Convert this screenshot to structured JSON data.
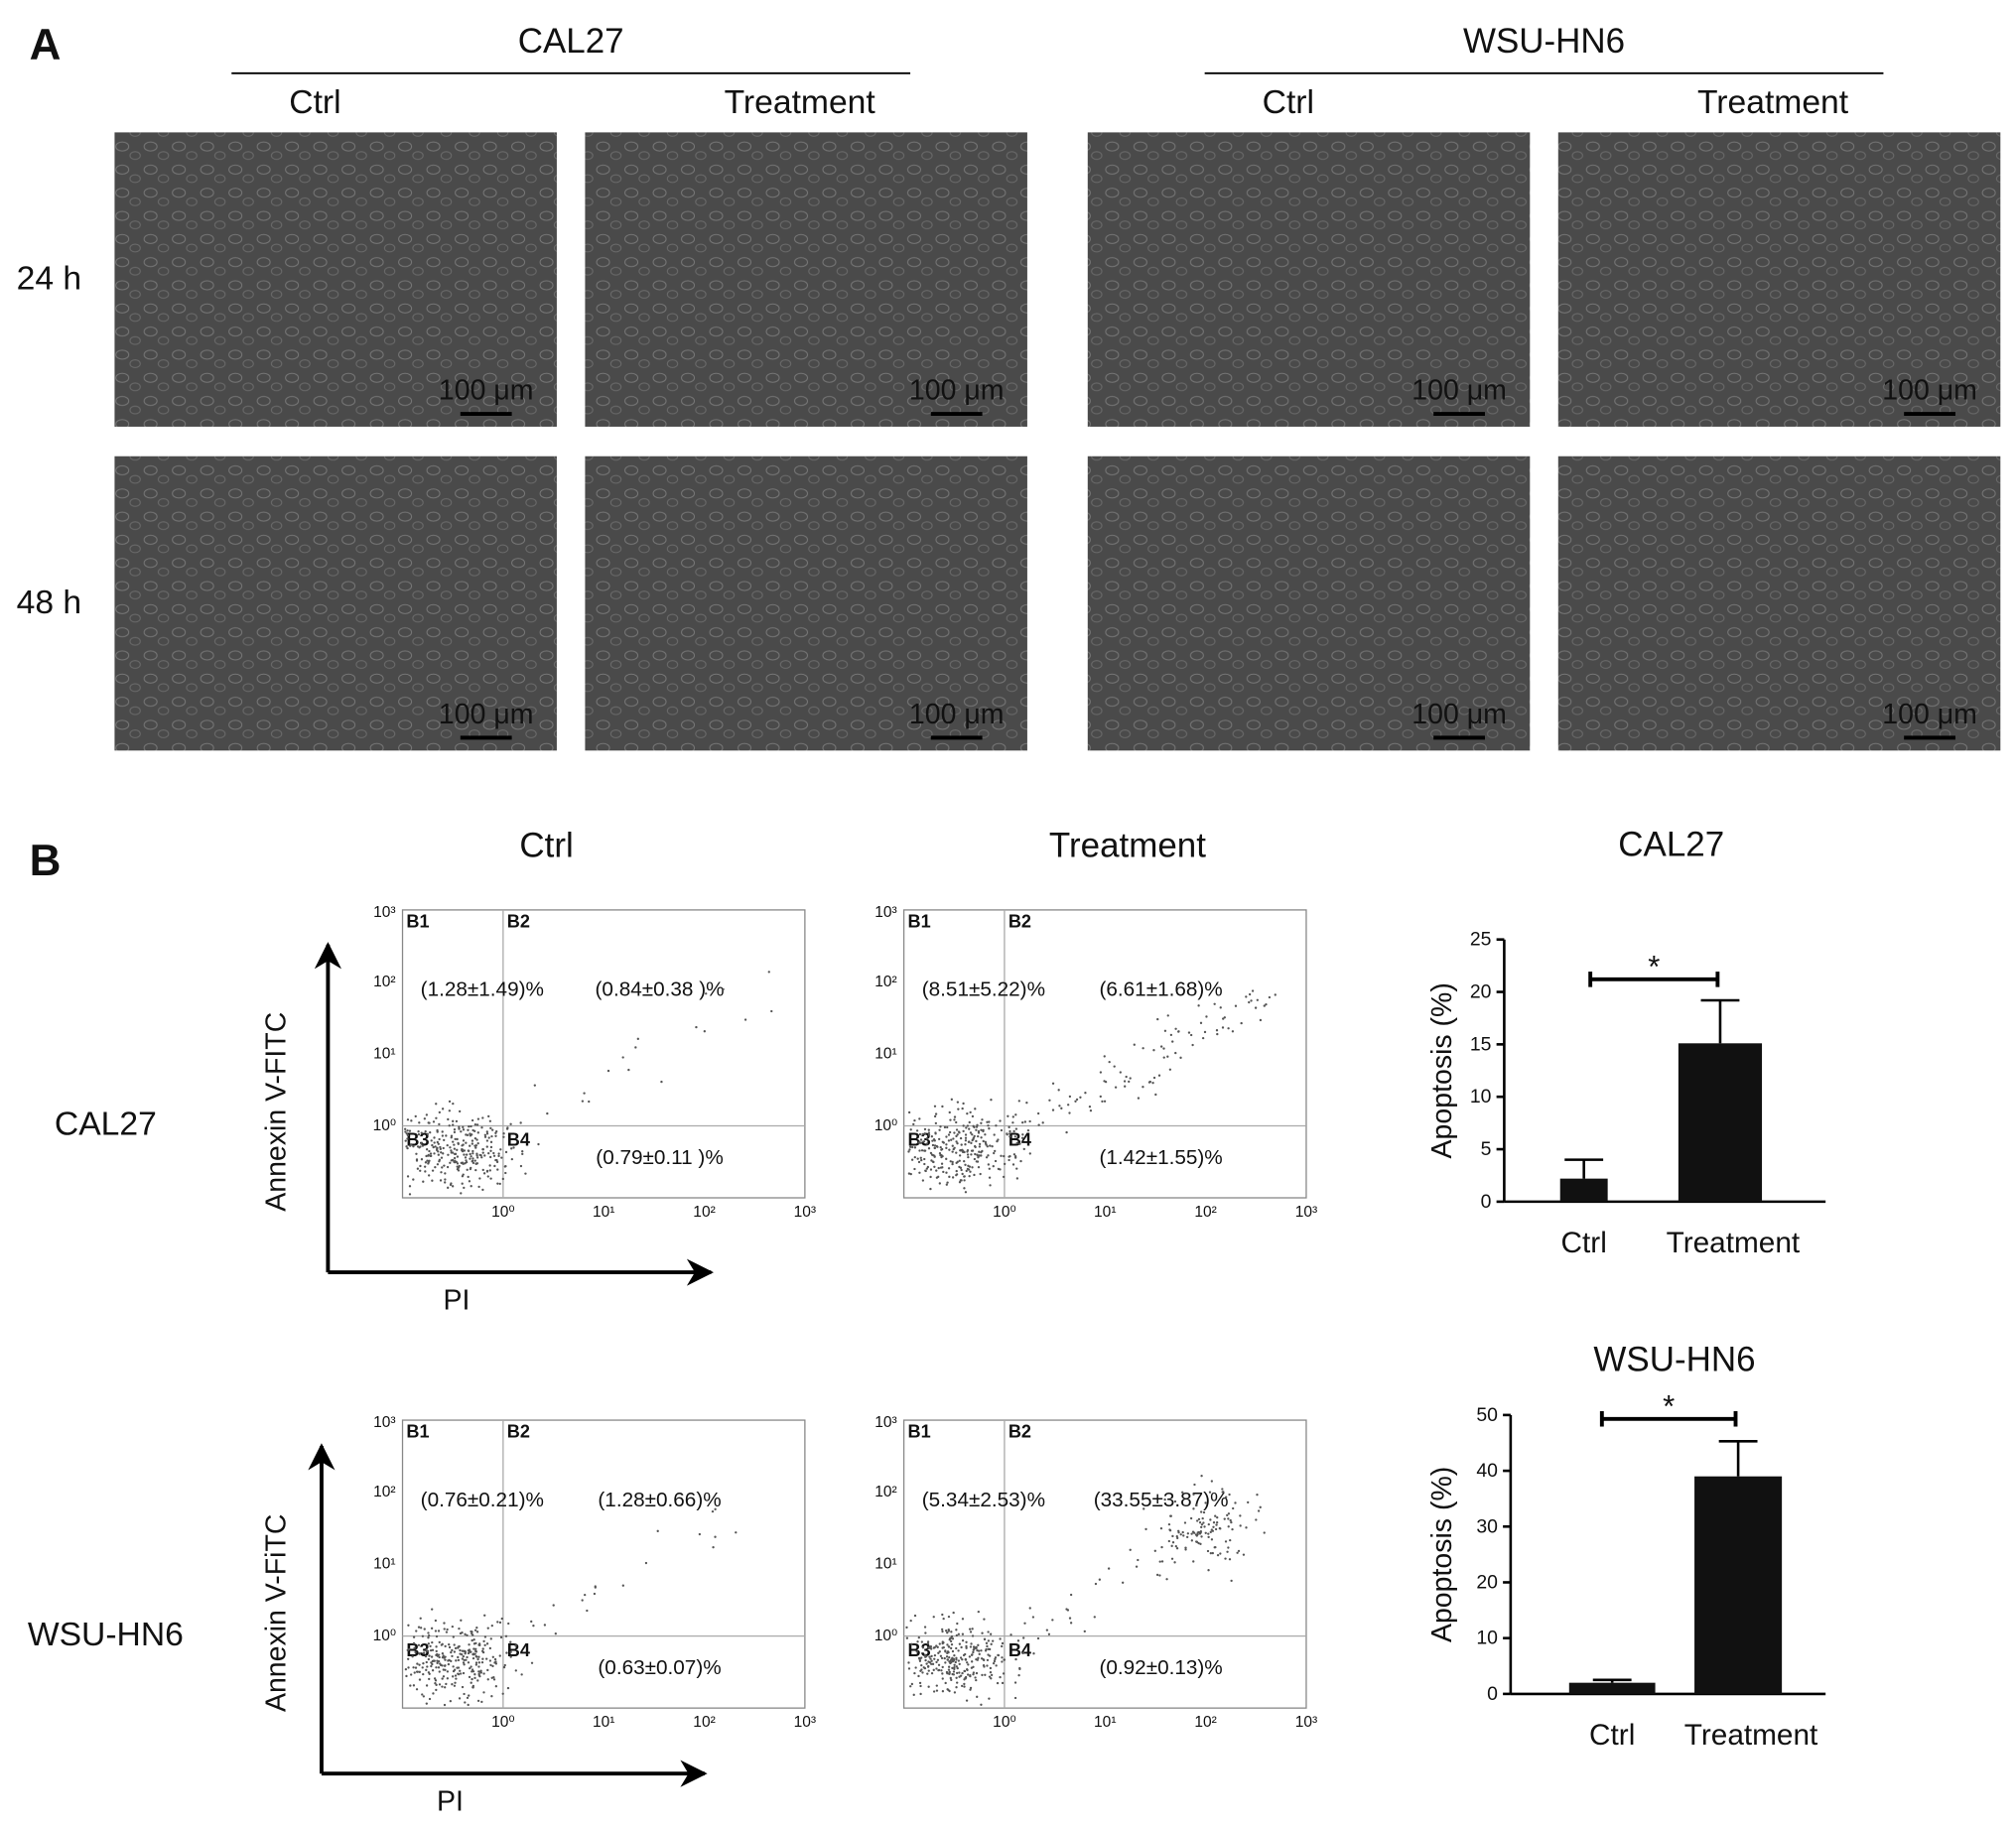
{
  "panel_a": {
    "label": "A",
    "groups": [
      {
        "name": "CAL27",
        "conditions": [
          "Ctrl",
          "Treatment"
        ]
      },
      {
        "name": "WSU-HN6",
        "conditions": [
          "Ctrl",
          "Treatment"
        ]
      }
    ],
    "timepoints": [
      "24 h",
      "48 h"
    ],
    "scale_bar": "100 μm"
  },
  "panel_b": {
    "label": "B",
    "columns": [
      "Ctrl",
      "Treatment"
    ],
    "flow_ticks": [
      "10⁰",
      "10¹",
      "10²",
      "10³"
    ],
    "quadrants": [
      "B1",
      "B2",
      "B3",
      "B4"
    ],
    "rows": [
      {
        "name": "CAL27",
        "y_axis_label": "Annexin V-FITC",
        "x_axis_label": "PI",
        "plots": [
          {
            "b1": "(1.28±1.49)%",
            "b2": "(0.84±0.38 )%",
            "b4": "(0.79±0.11 )%"
          },
          {
            "b1": "(8.51±5.22)%",
            "b2": "(6.61±1.68)%",
            "b4": "(1.42±1.55)%"
          }
        ]
      },
      {
        "name": "WSU-HN6",
        "y_axis_label": "Annexin V-FiTC",
        "x_axis_label": "PI",
        "plots": [
          {
            "b1": "(0.76±0.21)%",
            "b2": "(1.28±0.66)%",
            "b4": "(0.63±0.07)%"
          },
          {
            "b1": "(5.34±2.53)%",
            "b2": "(33.55±3.87)%",
            "b4": "(0.92±0.13)%"
          }
        ]
      }
    ]
  },
  "chart_data": [
    {
      "type": "bar",
      "title": "CAL27",
      "y_label": "Apoptosis (%)",
      "categories": [
        "Ctrl",
        "Treatment"
      ],
      "values": [
        2.2,
        15.1
      ],
      "errors": [
        1.8,
        4.1
      ],
      "color": "#111111",
      "ylim": [
        0,
        25
      ],
      "yticks": [
        0,
        5,
        10,
        15,
        20,
        25
      ],
      "annotation": "*"
    },
    {
      "type": "bar",
      "title": "WSU-HN6",
      "y_label": "Apoptosis (%)",
      "categories": [
        "Ctrl",
        "Treatment"
      ],
      "values": [
        2.0,
        39.0
      ],
      "errors": [
        0.5,
        6.3
      ],
      "color": "#111111",
      "ylim": [
        0,
        50
      ],
      "yticks": [
        0,
        10,
        20,
        30,
        40,
        50
      ],
      "annotation": "*"
    }
  ]
}
